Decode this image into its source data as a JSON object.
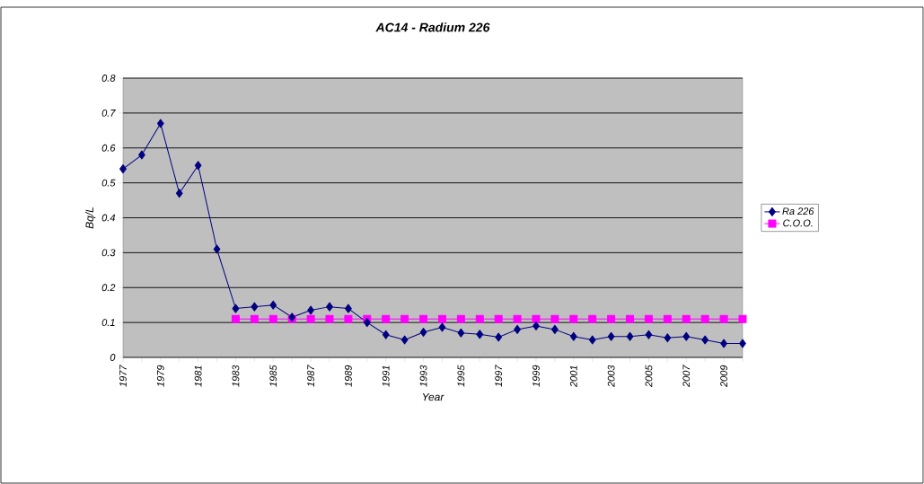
{
  "chart_data": {
    "type": "line",
    "title": "AC14 - Radium 226",
    "xlabel": "Year",
    "ylabel": "Bq/L",
    "categories": [
      "1977",
      null,
      "1979",
      null,
      "1981",
      null,
      "1983",
      null,
      "1985",
      null,
      "1987",
      null,
      "1989",
      null,
      "1991",
      null,
      "1993",
      null,
      "1995",
      null,
      "1997",
      null,
      "1999",
      null,
      "2001",
      null,
      "2003",
      null,
      "2005",
      null,
      "2007",
      null,
      "2009",
      null
    ],
    "series": [
      {
        "name": "Ra 226",
        "color": "#000080",
        "marker": "diamond",
        "values": [
          0.54,
          0.58,
          0.67,
          0.47,
          0.55,
          0.31,
          0.14,
          0.145,
          0.15,
          0.115,
          0.135,
          0.145,
          0.14,
          0.1,
          0.065,
          0.05,
          0.072,
          0.086,
          0.07,
          0.066,
          0.058,
          0.08,
          0.09,
          0.08,
          0.06,
          0.05,
          0.06,
          0.06,
          0.065,
          0.056,
          0.06,
          0.05,
          0.04,
          0.04
        ]
      },
      {
        "name": "C.O.O.",
        "color": "#ff00ff",
        "marker": "square",
        "values": [
          null,
          null,
          null,
          null,
          null,
          null,
          0.11,
          0.11,
          0.11,
          0.11,
          0.11,
          0.11,
          0.11,
          0.11,
          0.11,
          0.11,
          0.11,
          0.11,
          0.11,
          0.11,
          0.11,
          0.11,
          0.11,
          0.11,
          0.11,
          0.11,
          0.11,
          0.11,
          0.11,
          0.11,
          0.11,
          0.11,
          0.11,
          0.11
        ]
      }
    ],
    "ylim": [
      0,
      0.8
    ],
    "yticks": [
      0,
      0.1,
      0.2,
      0.3,
      0.4,
      0.5,
      0.6,
      0.7,
      0.8
    ],
    "grid": "y",
    "legend": "right"
  }
}
